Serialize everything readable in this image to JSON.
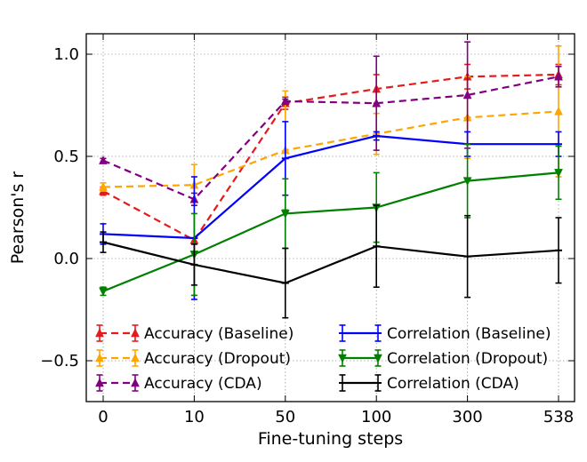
{
  "chart_data": {
    "type": "line",
    "title": "",
    "xlabel": "Fine-tuning steps",
    "ylabel": "Pearson's r",
    "categories": [
      "0",
      "10",
      "50",
      "100",
      "300",
      "538"
    ],
    "ylim": [
      -0.7,
      1.1
    ],
    "yticks": [
      -0.5,
      0.0,
      0.5,
      1.0
    ],
    "ytick_labels": [
      "−0.5",
      "0.0",
      "0.5",
      "1.0"
    ],
    "grid": true,
    "legend_placement": "lower-center",
    "series": [
      {
        "name": "Accuracy (Baseline)",
        "color": "#e41a1c",
        "dashed": true,
        "marker": "triangle-up",
        "values": [
          0.33,
          0.09,
          0.76,
          0.83,
          0.89,
          0.9
        ],
        "errors": [
          0.02,
          0.01,
          0.03,
          0.07,
          0.06,
          0.05
        ]
      },
      {
        "name": "Accuracy (Dropout)",
        "color": "#ffa500",
        "dashed": true,
        "marker": "triangle-up",
        "values": [
          0.35,
          0.36,
          0.53,
          0.61,
          0.69,
          0.72
        ],
        "errors": [
          0.02,
          0.1,
          0.29,
          0.1,
          0.2,
          0.32
        ]
      },
      {
        "name": "Accuracy (CDA)",
        "color": "#800080",
        "dashed": true,
        "marker": "triangle-up",
        "values": [
          0.48,
          0.29,
          0.77,
          0.76,
          0.8,
          0.89
        ],
        "errors": [
          0.01,
          0.03,
          0.01,
          0.23,
          0.26,
          0.05
        ]
      },
      {
        "name": "Correlation (Baseline)",
        "color": "#0000ff",
        "dashed": false,
        "marker": "tick",
        "values": [
          0.12,
          0.1,
          0.49,
          0.6,
          0.56,
          0.56
        ],
        "errors": [
          0.05,
          0.3,
          0.18,
          0.02,
          0.06,
          0.06
        ]
      },
      {
        "name": "Correlation (Dropout)",
        "color": "#008000",
        "dashed": false,
        "marker": "triangle-down",
        "values": [
          -0.16,
          0.02,
          0.22,
          0.25,
          0.38,
          0.42
        ],
        "errors": [
          0.02,
          0.2,
          0.17,
          0.17,
          0.18,
          0.13
        ]
      },
      {
        "name": "Correlation (CDA)",
        "color": "#000000",
        "dashed": false,
        "marker": "tick",
        "values": [
          0.08,
          -0.03,
          -0.12,
          0.06,
          0.01,
          0.04
        ],
        "errors": [
          0.05,
          0.1,
          0.17,
          0.2,
          0.2,
          0.16
        ]
      }
    ]
  }
}
